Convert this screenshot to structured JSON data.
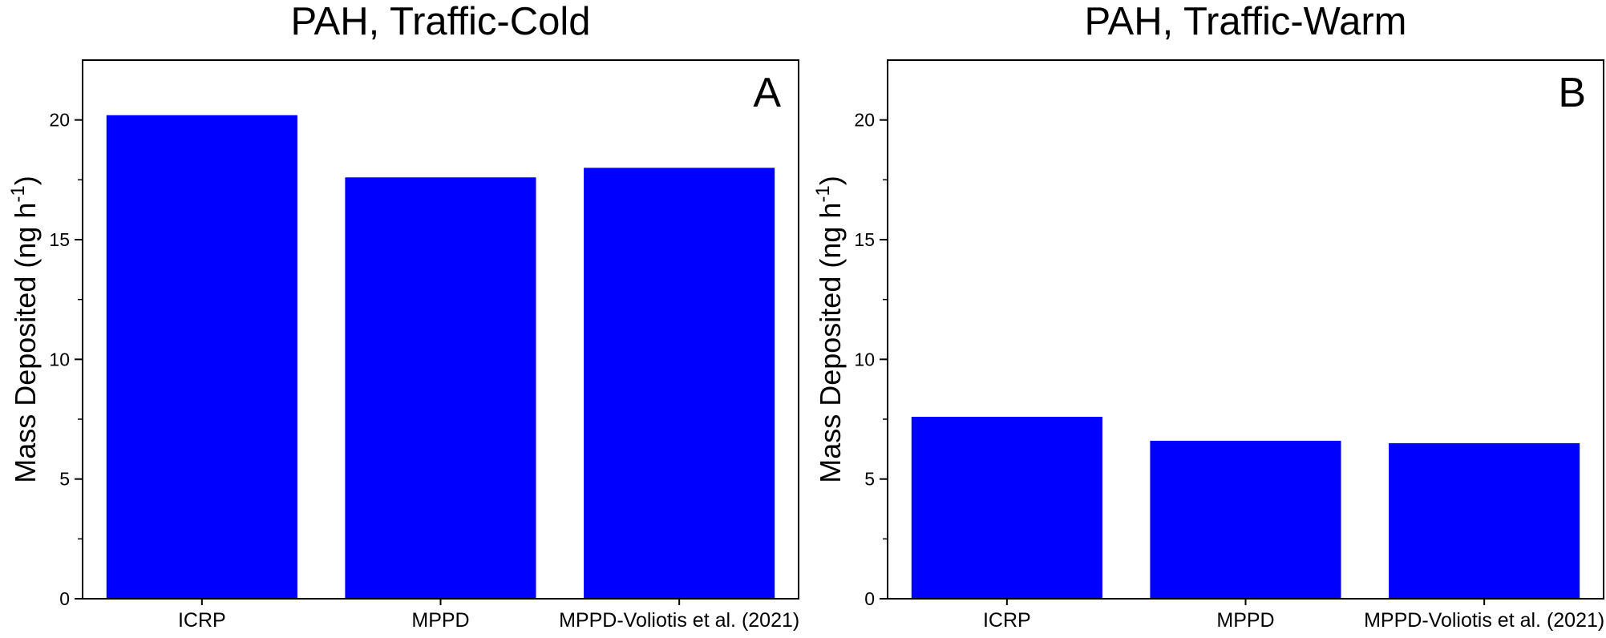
{
  "chart_data": [
    {
      "type": "bar",
      "title": "PAH, Traffic-Cold",
      "panel_label": "A",
      "ylabel": "Mass Deposited (ng h",
      "ylabel_sup": "-1",
      "ylabel_tail": ")",
      "xlabel": "",
      "categories": [
        "ICRP",
        "MPPD",
        "MPPD-Voliotis et al. (2021)"
      ],
      "values": [
        20.2,
        17.6,
        18.0
      ],
      "ylim": [
        0,
        22.5
      ],
      "yticks": [
        "0",
        "5",
        "10",
        "15",
        "20"
      ],
      "bar_color": "#0000ff",
      "grid": false,
      "legend": "none"
    },
    {
      "type": "bar",
      "title": "PAH, Traffic-Warm",
      "panel_label": "B",
      "ylabel": "Mass Deposited (ng h",
      "ylabel_sup": "-1",
      "ylabel_tail": ")",
      "xlabel": "",
      "categories": [
        "ICRP",
        "MPPD",
        "MPPD-Voliotis et al. (2021)"
      ],
      "values": [
        7.6,
        6.6,
        6.5
      ],
      "ylim": [
        0,
        22.5
      ],
      "yticks": [
        "0",
        "5",
        "10",
        "15",
        "20"
      ],
      "bar_color": "#0000ff",
      "grid": false,
      "legend": "none"
    }
  ]
}
